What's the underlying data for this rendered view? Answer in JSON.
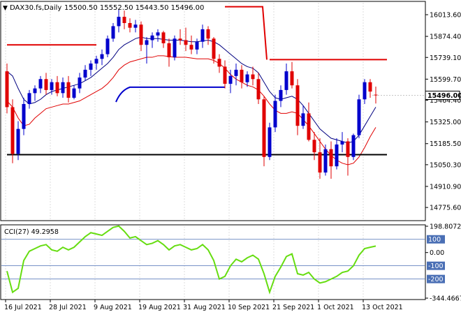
{
  "header": {
    "symbol": "DAX30.fs,Daily",
    "ohlc": "15500.50 15552.50 15443.50 15496.00",
    "arrow_icon": "triangle-down-icon"
  },
  "chart_data": [
    {
      "type": "candlestick",
      "title": "DAX30.fs,Daily",
      "ylim": [
        14700,
        16090
      ],
      "price_ticks": [
        "16013.60",
        "15874.40",
        "15739.10",
        "15599.70",
        "15464.40",
        "15325.00",
        "15185.50",
        "15050.30",
        "14910.90",
        "14775.60"
      ],
      "current_price": "15496.00",
      "date_labels": [
        "16 Jul 2021",
        "28 Jul 2021",
        "9 Aug 2021",
        "19 Aug 2021",
        "31 Aug 2021",
        "10 Sep 2021",
        "21 Sep 2021",
        "1 Oct 2021",
        "13 Oct 2021"
      ],
      "colors": {
        "bull": "#0000cc",
        "bear": "#e00000",
        "ma_fast": "#000080",
        "ma_slow": "#e00000",
        "support": "#000000",
        "cci": "#66dd11",
        "level": "#4a6fb5"
      },
      "candles": [
        [
          15650,
          15700,
          15380,
          15420
        ],
        [
          15420,
          15470,
          15060,
          15120
        ],
        [
          15120,
          15330,
          15080,
          15280
        ],
        [
          15280,
          15480,
          15240,
          15440
        ],
        [
          15440,
          15530,
          15410,
          15510
        ],
        [
          15510,
          15560,
          15460,
          15540
        ],
        [
          15540,
          15620,
          15510,
          15600
        ],
        [
          15600,
          15640,
          15500,
          15530
        ],
        [
          15530,
          15600,
          15500,
          15580
        ],
        [
          15580,
          15620,
          15490,
          15510
        ],
        [
          15510,
          15610,
          15480,
          15580
        ],
        [
          15580,
          15620,
          15450,
          15480
        ],
        [
          15480,
          15560,
          15470,
          15540
        ],
        [
          15540,
          15640,
          15510,
          15610
        ],
        [
          15610,
          15690,
          15590,
          15660
        ],
        [
          15660,
          15720,
          15620,
          15700
        ],
        [
          15700,
          15750,
          15660,
          15730
        ],
        [
          15730,
          15790,
          15690,
          15760
        ],
        [
          15760,
          15880,
          15740,
          15860
        ],
        [
          15860,
          15960,
          15840,
          15940
        ],
        [
          15940,
          16050,
          15900,
          16000
        ],
        [
          16000,
          16040,
          15920,
          15960
        ],
        [
          15960,
          15990,
          15900,
          15930
        ],
        [
          15930,
          15980,
          15900,
          15950
        ],
        [
          15950,
          15970,
          15780,
          15820
        ],
        [
          15820,
          15870,
          15700,
          15850
        ],
        [
          15850,
          15900,
          15800,
          15880
        ],
        [
          15880,
          15920,
          15840,
          15900
        ],
        [
          15900,
          15910,
          15800,
          15830
        ],
        [
          15830,
          15860,
          15680,
          15740
        ],
        [
          15740,
          15880,
          15720,
          15860
        ],
        [
          15860,
          15920,
          15820,
          15850
        ],
        [
          15850,
          15930,
          15780,
          15820
        ],
        [
          15820,
          15880,
          15760,
          15790
        ],
        [
          15790,
          15860,
          15760,
          15840
        ],
        [
          15840,
          15950,
          15800,
          15920
        ],
        [
          15920,
          15940,
          15820,
          15860
        ],
        [
          15860,
          15870,
          15700,
          15730
        ],
        [
          15730,
          15760,
          15640,
          15680
        ],
        [
          15680,
          15720,
          15540,
          15570
        ],
        [
          15570,
          15660,
          15510,
          15620
        ],
        [
          15620,
          15700,
          15560,
          15660
        ],
        [
          15660,
          15690,
          15540,
          15580
        ],
        [
          15580,
          15650,
          15550,
          15630
        ],
        [
          15630,
          15680,
          15560,
          15600
        ],
        [
          15600,
          15640,
          15440,
          15470
        ],
        [
          15470,
          15490,
          15040,
          15100
        ],
        [
          15100,
          15320,
          15080,
          15290
        ],
        [
          15290,
          15500,
          15260,
          15460
        ],
        [
          15460,
          15560,
          15420,
          15530
        ],
        [
          15530,
          15700,
          15500,
          15650
        ],
        [
          15650,
          15710,
          15540,
          15560
        ],
        [
          15560,
          15600,
          15240,
          15300
        ],
        [
          15300,
          15430,
          15280,
          15380
        ],
        [
          15380,
          15450,
          15200,
          15210
        ],
        [
          15210,
          15260,
          15080,
          15130
        ],
        [
          15130,
          15220,
          14960,
          15000
        ],
        [
          15000,
          15180,
          14980,
          15150
        ],
        [
          15150,
          15200,
          14960,
          15040
        ],
        [
          15040,
          15220,
          15020,
          15180
        ],
        [
          15180,
          15260,
          15130,
          15200
        ],
        [
          15200,
          15220,
          14980,
          15100
        ],
        [
          15100,
          15250,
          15080,
          15240
        ],
        [
          15240,
          15500,
          15220,
          15470
        ],
        [
          15470,
          15600,
          15440,
          15580
        ],
        [
          15580,
          15600,
          15480,
          15520
        ],
        [
          15500,
          15552,
          15443,
          15496
        ]
      ],
      "overlays": [
        {
          "name": "ma_fast",
          "values": [
            15650,
            15620,
            15540,
            15470,
            15440,
            15450,
            15470,
            15500,
            15520,
            15530,
            15540,
            15550,
            15560,
            15570,
            15590,
            15610,
            15640,
            15670,
            15700,
            15740,
            15790,
            15820,
            15840,
            15860,
            15870,
            15860,
            15860,
            15860,
            15855,
            15850,
            15850,
            15850,
            15845,
            15840,
            15840,
            15845,
            15850,
            15840,
            15820,
            15790,
            15760,
            15730,
            15700,
            15680,
            15670,
            15640,
            15580,
            15520,
            15480,
            15470,
            15480,
            15490,
            15470,
            15430,
            15380,
            15330,
            15280,
            15250,
            15220,
            15210,
            15200,
            15190,
            15200,
            15240,
            15300,
            15360,
            15420
          ]
        },
        {
          "name": "ma_slow",
          "values": [
            15460,
            15420,
            15350,
            15300,
            15310,
            15350,
            15380,
            15410,
            15420,
            15430,
            15440,
            15440,
            15450,
            15460,
            15480,
            15500,
            15520,
            15540,
            15570,
            15610,
            15660,
            15690,
            15710,
            15720,
            15730,
            15740,
            15740,
            15750,
            15750,
            15745,
            15740,
            15740,
            15740,
            15735,
            15730,
            15730,
            15730,
            15720,
            15700,
            15670,
            15630,
            15600,
            15580,
            15560,
            15550,
            15530,
            15490,
            15440,
            15400,
            15380,
            15380,
            15390,
            15380,
            15340,
            15300,
            15250,
            15200,
            15150,
            15110,
            15080,
            15060,
            15050,
            15060,
            15100,
            15160,
            15230,
            15290
          ]
        },
        {
          "name": "resistance-upper-left",
          "line": true,
          "from": 0,
          "to": 16,
          "value": 15820
        },
        {
          "name": "resistance-top",
          "line": true,
          "from": 39,
          "to": 46,
          "value": 16065
        },
        {
          "name": "resistance-right",
          "line": true,
          "from": 47,
          "to": 68,
          "value": 15725
        },
        {
          "name": "blue-level",
          "line": true,
          "from": 20,
          "to": 39,
          "value": 15548
        },
        {
          "name": "support",
          "line": true,
          "from": 0,
          "to": 68,
          "value": 15115
        }
      ]
    },
    {
      "type": "line",
      "title": "CCI(27) 49.2958",
      "ylim": [
        -344.4667,
        198.8072
      ],
      "y_ticks": [
        "198.8072",
        "100",
        "0.00",
        "-100",
        "-200",
        "-344.4667"
      ],
      "levels": [
        100,
        -100,
        -200
      ],
      "series": [
        {
          "values": [
            -140,
            -300,
            -270,
            -60,
            10,
            30,
            50,
            60,
            20,
            10,
            40,
            20,
            40,
            80,
            120,
            150,
            140,
            130,
            160,
            190,
            200,
            160,
            110,
            120,
            90,
            60,
            70,
            90,
            60,
            20,
            50,
            60,
            40,
            20,
            30,
            60,
            20,
            -60,
            -200,
            -180,
            -100,
            -50,
            -70,
            -40,
            -20,
            -50,
            -160,
            -300,
            -180,
            -110,
            -30,
            -10,
            -160,
            -170,
            -150,
            -200,
            -230,
            -220,
            -200,
            -180,
            -150,
            -140,
            -100,
            -20,
            30,
            40,
            49.2958
          ]
        }
      ]
    }
  ]
}
